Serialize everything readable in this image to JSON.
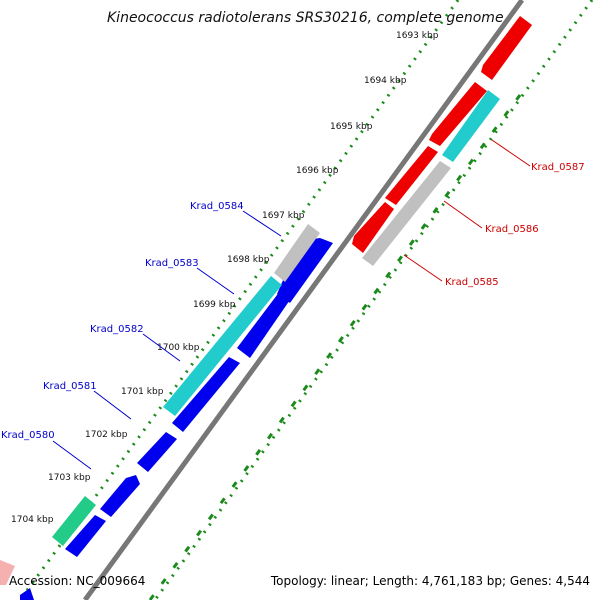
{
  "title": "Kineococcus radiotolerans SRS30216, complete genome",
  "footer": {
    "accession": "Accession: NC_009664",
    "topology": "Topology: linear; Length: 4,761,183 bp; Genes: 4,544"
  },
  "ticks": [
    "1693 kbp",
    "1694 kbp",
    "1695 kbp",
    "1696 kbp",
    "1697 kbp",
    "1698 kbp",
    "1699 kbp",
    "1700 kbp",
    "1701 kbp",
    "1702 kbp",
    "1703 kbp",
    "1704 kbp"
  ],
  "genes_forward": [
    "Krad_0580",
    "Krad_0581",
    "Krad_0582",
    "Krad_0583",
    "Krad_0584"
  ],
  "genes_reverse": [
    "Krad_0585",
    "Krad_0586",
    "Krad_0587"
  ],
  "colors": {
    "forward_label": "#0000cc",
    "reverse_label": "#cc0000",
    "backbone": "#808080",
    "forward_gene": "#0000ee",
    "reverse_gene": "#ee0000",
    "cyan_gene": "#22cccc",
    "grey_gene": "#c0c0c0",
    "green_gene": "#22cc88",
    "dots": "#1a8a1a"
  }
}
